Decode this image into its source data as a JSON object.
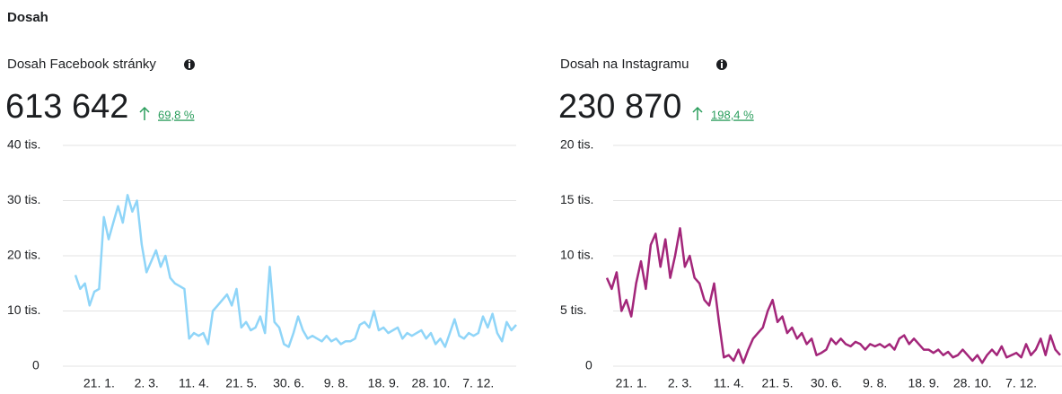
{
  "header": {
    "title": "Dosah"
  },
  "panels": [
    {
      "title": "Dosah Facebook stránky",
      "total": "613 642",
      "change": "69,8 %"
    },
    {
      "title": "Dosah na Instagramu",
      "total": "230 870",
      "change": "198,4 %"
    }
  ],
  "chart_data": [
    {
      "type": "line",
      "color": "#8fd5f8",
      "categories": [
        null,
        null,
        null,
        null,
        null,
        "21. 1.",
        null,
        null,
        null,
        null,
        null,
        null,
        null,
        null,
        null,
        "2. 3.",
        null,
        null,
        null,
        null,
        null,
        null,
        null,
        null,
        null,
        "11. 4.",
        null,
        null,
        null,
        null,
        null,
        null,
        null,
        null,
        null,
        "21. 5.",
        null,
        null,
        null,
        null,
        null,
        null,
        null,
        null,
        null,
        "30. 6.",
        null,
        null,
        null,
        null,
        null,
        null,
        null,
        null,
        null,
        "9. 8.",
        null,
        null,
        null,
        null,
        null,
        null,
        null,
        null,
        null,
        "18. 9.",
        null,
        null,
        null,
        null,
        null,
        null,
        null,
        null,
        null,
        "28. 10.",
        null,
        null,
        null,
        null,
        null,
        null,
        null,
        null,
        null,
        "7. 12.",
        null,
        null,
        null,
        null,
        null,
        null,
        null,
        null
      ],
      "values": [
        16.5,
        14,
        15,
        11,
        13.5,
        14,
        27,
        23,
        26,
        29,
        26,
        31,
        28,
        30,
        22,
        17,
        19,
        21,
        18,
        20,
        16,
        15,
        14.5,
        14,
        5,
        6,
        5.5,
        6,
        4,
        10,
        11,
        12,
        13,
        11,
        14,
        7,
        8,
        6.5,
        7,
        9,
        6,
        18,
        8,
        7,
        4,
        3.5,
        6,
        9,
        6.5,
        5,
        5.5,
        5,
        4.5,
        5.5,
        4.5,
        5,
        4,
        4.5,
        4.5,
        5,
        7.5,
        8,
        7,
        10,
        6.5,
        7,
        6,
        6.5,
        7,
        5,
        6,
        5.5,
        6,
        6.5,
        5,
        6,
        4,
        5,
        3.5,
        6,
        8.5,
        5.5,
        5,
        6,
        5.5,
        6,
        9,
        7,
        9.5,
        6,
        4.5,
        8,
        6.5,
        7.5
      ],
      "ylim": [
        0,
        40
      ],
      "yticks": [
        0,
        {
          "value": 10,
          "label": "10 tis."
        },
        {
          "value": 20,
          "label": "20 tis."
        },
        {
          "value": 30,
          "label": "30 tis."
        },
        {
          "value": 40,
          "label": "40 tis."
        }
      ],
      "grid": true
    },
    {
      "type": "line",
      "color": "#a3267a",
      "categories": [
        null,
        null,
        null,
        null,
        null,
        "21. 1.",
        null,
        null,
        null,
        null,
        null,
        null,
        null,
        null,
        null,
        "2. 3.",
        null,
        null,
        null,
        null,
        null,
        null,
        null,
        null,
        null,
        "11. 4.",
        null,
        null,
        null,
        null,
        null,
        null,
        null,
        null,
        null,
        "21. 5.",
        null,
        null,
        null,
        null,
        null,
        null,
        null,
        null,
        null,
        "30. 6.",
        null,
        null,
        null,
        null,
        null,
        null,
        null,
        null,
        null,
        "9. 8.",
        null,
        null,
        null,
        null,
        null,
        null,
        null,
        null,
        null,
        "18. 9.",
        null,
        null,
        null,
        null,
        null,
        null,
        null,
        null,
        null,
        "28. 10.",
        null,
        null,
        null,
        null,
        null,
        null,
        null,
        null,
        null,
        "7. 12.",
        null,
        null,
        null,
        null,
        null,
        null,
        null,
        null
      ],
      "values": [
        8,
        7,
        8.5,
        5,
        6,
        4.5,
        7.5,
        9.5,
        7,
        11,
        12,
        9,
        11.5,
        8,
        10,
        12.5,
        9,
        10,
        8,
        7.5,
        6,
        5.5,
        7.5,
        4,
        0.8,
        1,
        0.5,
        1.5,
        0.3,
        1.5,
        2.5,
        3,
        3.5,
        5,
        6,
        4,
        4.5,
        3,
        3.5,
        2.5,
        3,
        2,
        2.5,
        1,
        1.2,
        1.5,
        2.5,
        2,
        2.5,
        2,
        1.8,
        2.2,
        2,
        1.5,
        2,
        1.8,
        2,
        1.7,
        2,
        1.5,
        2.5,
        2.8,
        2,
        2.5,
        2,
        1.5,
        1.5,
        1.2,
        1.5,
        1,
        1.3,
        0.8,
        1,
        1.5,
        1,
        0.5,
        1,
        0.3,
        1,
        1.5,
        1,
        1.8,
        0.8,
        1,
        1.2,
        0.8,
        2,
        1,
        1.5,
        2.5,
        1,
        2.8,
        1.5,
        1
      ],
      "ylim": [
        0,
        20
      ],
      "yticks": [
        0,
        {
          "value": 5,
          "label": "5 tis."
        },
        {
          "value": 10,
          "label": "10 tis."
        },
        {
          "value": 15,
          "label": "15 tis."
        },
        {
          "value": 20,
          "label": "20 tis."
        }
      ],
      "grid": true
    }
  ]
}
